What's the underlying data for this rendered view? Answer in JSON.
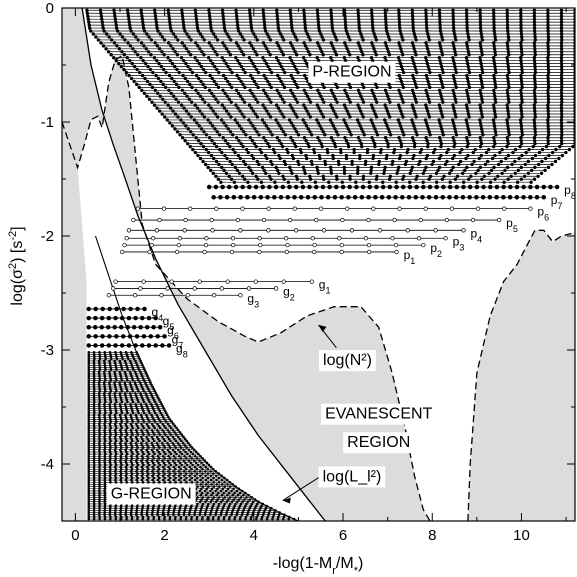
{
  "chart_data": {
    "type": "line",
    "title": "",
    "xlabel": "-log(1-M_r/M_*)",
    "ylabel": "log(σ²) [s⁻²]",
    "xlim": [
      -0.3,
      11.2
    ],
    "ylim": [
      -4.5,
      0
    ],
    "x_ticks": [
      "0",
      "2",
      "4",
      "6",
      "8",
      "10"
    ],
    "y_ticks": [
      "0",
      "-1",
      "-2",
      "-3",
      "-4"
    ],
    "axis_title_parts": {
      "x": {
        "pre": "-log(1-M",
        "sub1": "r",
        "mid": "/M",
        "sub2": "*",
        "post": ")"
      },
      "y": {
        "pre": "log(σ",
        "sup1": "2",
        "mid": ") [s",
        "sup2": "-2",
        "post": "]"
      }
    },
    "series": [
      {
        "name": "log(N²)",
        "style": "dashed",
        "x": [
          -0.3,
          0.05,
          0.2,
          0.35,
          0.5,
          0.6,
          0.75,
          0.9,
          1.05,
          1.2,
          1.35,
          1.5,
          1.8,
          2.5,
          3.2,
          3.8,
          4.1,
          4.6,
          5.2,
          5.8,
          6.4,
          6.8,
          7.1,
          7.4,
          7.6,
          7.8,
          7.95,
          8.0
        ],
        "y": [
          -1.0,
          -1.4,
          -1.2,
          -0.98,
          -0.95,
          -1.05,
          -0.65,
          -0.45,
          -0.42,
          -0.7,
          -1.3,
          -1.9,
          -2.25,
          -2.55,
          -2.75,
          -2.88,
          -2.93,
          -2.85,
          -2.7,
          -2.62,
          -2.62,
          -2.8,
          -3.2,
          -3.7,
          -4.1,
          -4.4,
          -4.5,
          -4.5
        ]
      },
      {
        "name": "log(N²) core",
        "style": "dashed",
        "x": [
          8.8,
          8.85,
          9.0,
          9.3,
          9.6,
          9.9,
          10.1,
          10.3,
          10.5,
          10.7,
          10.9,
          11.2
        ],
        "y": [
          -4.5,
          -4.0,
          -3.2,
          -2.7,
          -2.4,
          -2.25,
          -2.1,
          -1.95,
          -1.95,
          -2.05,
          -2.0,
          -1.97
        ]
      },
      {
        "name": "log(L_l²)",
        "style": "solid",
        "x": [
          0.15,
          0.35,
          0.6,
          0.85,
          1.1,
          1.4,
          1.8,
          2.3,
          2.9,
          3.5,
          4.1,
          4.7,
          5.2,
          5.6
        ],
        "y": [
          0.0,
          -0.5,
          -0.9,
          -1.2,
          -1.48,
          -1.82,
          -2.2,
          -2.6,
          -3.0,
          -3.4,
          -3.75,
          -4.05,
          -4.3,
          -4.5
        ]
      },
      {
        "name": "G-mode edge",
        "style": "solid",
        "x": [
          0.45,
          0.75,
          1.05,
          1.35,
          1.7,
          2.1,
          2.6,
          3.1,
          3.6,
          4.1,
          4.6,
          5.0
        ],
        "y": [
          -2.0,
          -2.35,
          -2.7,
          -3.0,
          -3.3,
          -3.6,
          -3.85,
          -4.05,
          -4.2,
          -4.33,
          -4.43,
          -4.5
        ]
      }
    ],
    "p_modes": [
      {
        "label": "p",
        "n": "1",
        "y": -2.14,
        "x_start": 1.05,
        "x_end": 7.2
      },
      {
        "label": "p",
        "n": "2",
        "y": -2.08,
        "x_start": 1.1,
        "x_end": 7.8
      },
      {
        "label": "p",
        "n": "3",
        "y": -2.02,
        "x_start": 1.15,
        "x_end": 8.3
      },
      {
        "label": "p",
        "n": "4",
        "y": -1.95,
        "x_start": 1.2,
        "x_end": 8.7
      },
      {
        "label": "p",
        "n": "5",
        "y": -1.86,
        "x_start": 1.3,
        "x_end": 9.5
      },
      {
        "label": "p",
        "n": "6",
        "y": -1.76,
        "x_start": 1.4,
        "x_end": 10.2
      },
      {
        "label": "p",
        "n": "7",
        "y": -1.66,
        "x_start": 3.1,
        "x_end": 10.5
      },
      {
        "label": "p",
        "n": "8",
        "y": -1.57,
        "x_start": 3.0,
        "x_end": 10.8
      }
    ],
    "g_modes": [
      {
        "label": "g",
        "n": "1",
        "y": -2.4,
        "x_start": 0.9,
        "x_end": 5.3
      },
      {
        "label": "g",
        "n": "2",
        "y": -2.46,
        "x_start": 0.85,
        "x_end": 4.5
      },
      {
        "label": "g",
        "n": "3",
        "y": -2.52,
        "x_start": 0.75,
        "x_end": 3.7
      },
      {
        "label": "g",
        "n": "4",
        "y": -2.64,
        "x_start": 0.3,
        "x_end": 1.55
      },
      {
        "label": "g",
        "n": "5",
        "y": -2.72,
        "x_start": 0.3,
        "x_end": 1.8
      },
      {
        "label": "g",
        "n": "6",
        "y": -2.8,
        "x_start": 0.3,
        "x_end": 1.9
      },
      {
        "label": "g",
        "n": "7",
        "y": -2.88,
        "x_start": 0.3,
        "x_end": 2.0
      },
      {
        "label": "g",
        "n": "8",
        "y": -2.96,
        "x_start": 0.3,
        "x_end": 2.1
      }
    ],
    "annotations": [
      {
        "text": "P-REGION",
        "x": 6.2,
        "y": -0.55
      },
      {
        "text": "EVANESCENT",
        "x": 6.8,
        "y": -3.55
      },
      {
        "text": "REGION",
        "x": 6.8,
        "y": -3.8
      },
      {
        "text": "G-REGION",
        "x": 1.7,
        "y": -4.25
      },
      {
        "text": "log(N²)",
        "x": 6.1,
        "y": -3.08
      },
      {
        "text": "log(L_l²)",
        "x": 6.2,
        "y": -4.1
      }
    ],
    "legend": "none",
    "grid": false
  }
}
